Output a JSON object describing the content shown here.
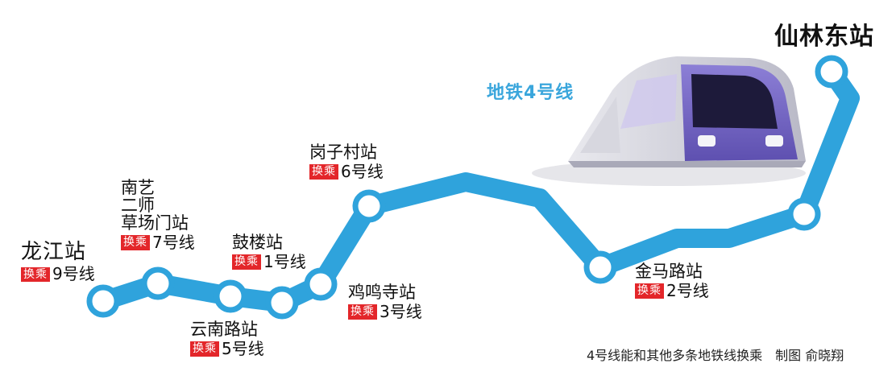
{
  "line_title": "地铁4号线",
  "transfer_label": "换乘",
  "colors": {
    "line": "#2fa3dc",
    "badge": "#e3262a",
    "train": "#7d6ec9"
  },
  "terminal_station": "仙林东站",
  "stations": [
    {
      "id": "longjiang",
      "name": "龙江站",
      "transfer": "9号线"
    },
    {
      "id": "nanyi",
      "name_lines": [
        "南艺",
        "二师",
        "草场门站"
      ],
      "transfer": "7号线"
    },
    {
      "id": "yunnanlu",
      "name": "云南路站",
      "transfer": "5号线"
    },
    {
      "id": "gulou",
      "name": "鼓楼站",
      "transfer": "1号线"
    },
    {
      "id": "jimingsi",
      "name": "鸡鸣寺站",
      "transfer": "3号线"
    },
    {
      "id": "gangzicun",
      "name": "岗子村站",
      "transfer": "6号线"
    },
    {
      "id": "jinmalu",
      "name": "金马路站",
      "transfer": "2号线"
    }
  ],
  "caption": "4号线能和其他多条地铁线换乘　制图 俞晓翔"
}
